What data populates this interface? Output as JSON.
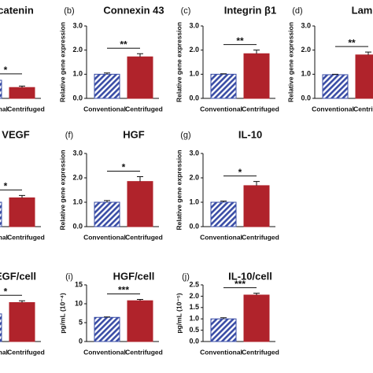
{
  "chart_data": [
    {
      "type": "bar",
      "title": "catenin",
      "categories": [
        "Conventional",
        "Centrifuged"
      ],
      "values": [
        1.0,
        0.6
      ],
      "errors": [
        0.05,
        0.08
      ],
      "colors": [
        "#3a4da6",
        "#b0232b"
      ],
      "significance": "*",
      "ylim": [
        0,
        4
      ]
    },
    {
      "type": "bar",
      "panel": "(b)",
      "title": "Connexin 43",
      "ylabel": "Relative gene expression",
      "categories": [
        "Conventional",
        "Centrifuged"
      ],
      "values": [
        1.0,
        1.72
      ],
      "errors": [
        0.05,
        0.13
      ],
      "colors": [
        "#3a4da6",
        "#b0232b"
      ],
      "significance": "**",
      "ylim": [
        0,
        3
      ],
      "yticks": [
        {
          "value": 0,
          "label": "0.0"
        },
        {
          "value": 1,
          "label": "1.0"
        },
        {
          "value": 2,
          "label": "2.0"
        },
        {
          "value": 3,
          "label": "3.0"
        }
      ]
    },
    {
      "type": "bar",
      "panel": "(c)",
      "title": "Integrin β1",
      "ylabel": "Relative gene expression",
      "categories": [
        "Conventional",
        "Centrifuged"
      ],
      "values": [
        1.0,
        1.85
      ],
      "errors": [
        0.02,
        0.15
      ],
      "colors": [
        "#3a4da6",
        "#b0232b"
      ],
      "significance": "**",
      "ylim": [
        0,
        3
      ],
      "yticks": [
        {
          "value": 0,
          "label": "0.0"
        },
        {
          "value": 1,
          "label": "1.0"
        },
        {
          "value": 2,
          "label": "2.0"
        },
        {
          "value": 3,
          "label": "3.0"
        }
      ]
    },
    {
      "type": "bar",
      "panel": "(d)",
      "title": "Lam",
      "ylabel": "Relative gene expression",
      "categories": [
        "Conventional",
        "Centrifuged"
      ],
      "values": [
        0.98,
        1.8
      ],
      "errors": [
        0.02,
        0.12
      ],
      "colors": [
        "#3a4da6",
        "#b0232b"
      ],
      "significance": "**",
      "ylim": [
        0,
        3
      ],
      "yticks": [
        {
          "value": 0,
          "label": "0.0"
        },
        {
          "value": 1,
          "label": "1.0"
        },
        {
          "value": 2,
          "label": "2.0"
        },
        {
          "value": 3,
          "label": "3.0"
        }
      ]
    },
    {
      "type": "bar",
      "title": "VEGF",
      "categories": [
        "Conventional",
        "Centrifuged"
      ],
      "values": [
        1.0,
        1.18
      ],
      "errors": [
        0.04,
        0.1
      ],
      "colors": [
        "#3a4da6",
        "#b0232b"
      ],
      "significance": "*",
      "ylim": [
        0,
        3
      ]
    },
    {
      "type": "bar",
      "panel": "(f)",
      "title": "HGF",
      "ylabel": "Relative gene expression",
      "categories": [
        "Conventional",
        "Centrifuged"
      ],
      "values": [
        1.0,
        1.85
      ],
      "errors": [
        0.07,
        0.2
      ],
      "colors": [
        "#3a4da6",
        "#b0232b"
      ],
      "significance": "*",
      "ylim": [
        0,
        3
      ],
      "yticks": [
        {
          "value": 0,
          "label": "0.0"
        },
        {
          "value": 1,
          "label": "1.0"
        },
        {
          "value": 2,
          "label": "2.0"
        },
        {
          "value": 3,
          "label": "3.0"
        }
      ]
    },
    {
      "type": "bar",
      "panel": "(g)",
      "title": "IL-10",
      "ylabel": "Relative gene expression",
      "categories": [
        "Conventional",
        "Centrifuged"
      ],
      "values": [
        1.0,
        1.68
      ],
      "errors": [
        0.05,
        0.17
      ],
      "colors": [
        "#3a4da6",
        "#b0232b"
      ],
      "significance": "*",
      "ylim": [
        0,
        3
      ],
      "yticks": [
        {
          "value": 0,
          "label": "0.0"
        },
        {
          "value": 1,
          "label": "1.0"
        },
        {
          "value": 2,
          "label": "2.0"
        },
        {
          "value": 3,
          "label": "3.0"
        }
      ]
    },
    {
      "type": "bar",
      "title": "EGF/cell",
      "categories": [
        "Conventional",
        "Centrifuged"
      ],
      "values": [
        7.8,
        11.0
      ],
      "errors": [
        0.3,
        0.5
      ],
      "colors": [
        "#3a4da6",
        "#b0232b"
      ],
      "significance": "*",
      "ylim": [
        0,
        16
      ]
    },
    {
      "type": "bar",
      "panel": "(i)",
      "title": "HGF/cell",
      "ylabel": "pg/mL (10⁻⁴)",
      "categories": [
        "Conventional",
        "Centrifuged"
      ],
      "values": [
        6.4,
        10.8
      ],
      "errors": [
        0.1,
        0.35
      ],
      "colors": [
        "#3a4da6",
        "#b0232b"
      ],
      "significance": "***",
      "ylim": [
        0,
        15
      ],
      "yticks": [
        0,
        5,
        10,
        15
      ]
    },
    {
      "type": "bar",
      "panel": "(j)",
      "title": "IL-10/cell",
      "ylabel": "pg/mL (10⁻⁵)",
      "categories": [
        "Conventional",
        "Centrifuged"
      ],
      "values": [
        1.0,
        2.05
      ],
      "errors": [
        0.05,
        0.08
      ],
      "colors": [
        "#3a4da6",
        "#b0232b"
      ],
      "significance": "***",
      "ylim": [
        0,
        2.5
      ],
      "yticks": [
        {
          "value": 0,
          "label": "0.0"
        },
        {
          "value": 0.5,
          "label": "0.5"
        },
        {
          "value": 1,
          "label": "1.0"
        },
        {
          "value": 1.5,
          "label": "1.5"
        },
        {
          "value": 2,
          "label": "2.0"
        },
        {
          "value": 2.5,
          "label": "2.5"
        }
      ]
    }
  ]
}
